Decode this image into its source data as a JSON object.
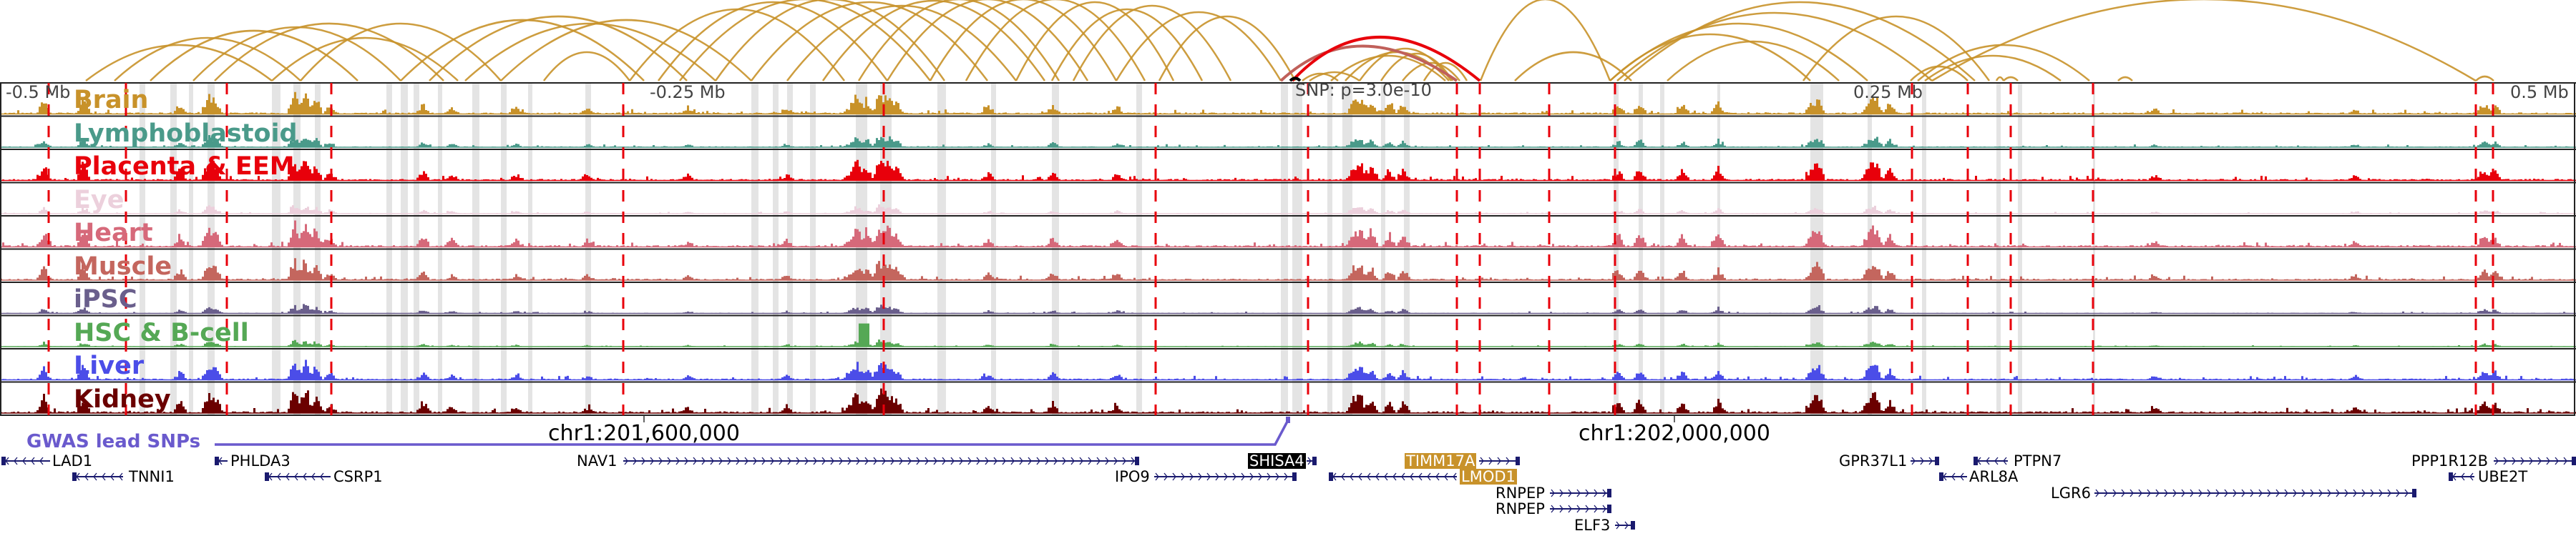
{
  "ruler": {
    "labels": [
      "-0.5 Mb",
      "-0.25 Mb",
      "0.25 Mb",
      "0.5 Mb"
    ],
    "snp_label": "SNP: p=3.0e-10"
  },
  "tracks": [
    {
      "label": "Brain",
      "color": "#c8922a"
    },
    {
      "label": "Lymphoblastoid",
      "color": "#4a9a8a"
    },
    {
      "label": "Placenta & EEM",
      "color": "#e8000b"
    },
    {
      "label": "Eye",
      "color": "#ecd0dc"
    },
    {
      "label": "Heart",
      "color": "#d6697a"
    },
    {
      "label": "Muscle",
      "color": "#c4665e"
    },
    {
      "label": "iPSC",
      "color": "#6a5f8c"
    },
    {
      "label": "HSC & B-cell",
      "color": "#55a855"
    },
    {
      "label": "Liver",
      "color": "#4b4de8"
    },
    {
      "label": "Kidney",
      "color": "#6b0000"
    }
  ],
  "coordinates": [
    "chr1:201,600,000",
    "chr1:202,000,000"
  ],
  "gwas": {
    "label": "GWAS lead SNPs",
    "color": "#6a5acd"
  },
  "colors": {
    "arc": "#c8922a",
    "arc_highlight": "#e8000b",
    "gene": "#1a1a6e",
    "highlight_gene": "#c8922a",
    "snp_gene": "#000000",
    "dashed_line": "#e8000b"
  },
  "genes": [
    {
      "name": "LAD1",
      "strand": "-"
    },
    {
      "name": "TNNI1",
      "strand": "-"
    },
    {
      "name": "PHLDA3",
      "strand": "-"
    },
    {
      "name": "CSRP1",
      "strand": "-"
    },
    {
      "name": "NAV1",
      "strand": "+"
    },
    {
      "name": "IPO9",
      "strand": "+"
    },
    {
      "name": "SHISA4",
      "strand": "+",
      "highlight": "snp"
    },
    {
      "name": "TIMM17A",
      "strand": "+",
      "highlight": "target"
    },
    {
      "name": "LMOD1",
      "strand": "-",
      "highlight": "target"
    },
    {
      "name": "RNPEP",
      "strand": "+"
    },
    {
      "name": "RNPEP",
      "strand": "+"
    },
    {
      "name": "ELF3",
      "strand": "+"
    },
    {
      "name": "GPR37L1",
      "strand": "+"
    },
    {
      "name": "PTPN7",
      "strand": "-"
    },
    {
      "name": "ARL8A",
      "strand": "-"
    },
    {
      "name": "LGR6",
      "strand": "+"
    },
    {
      "name": "PPP1R12B",
      "strand": "+"
    },
    {
      "name": "UBE2T",
      "strand": "-"
    }
  ]
}
